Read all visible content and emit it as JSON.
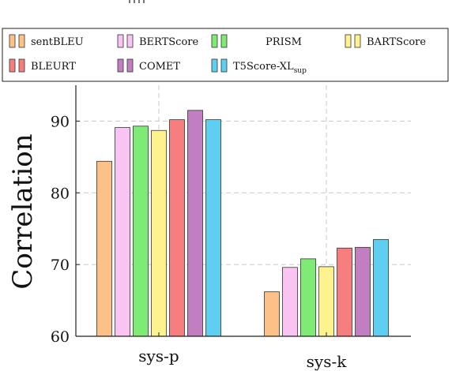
{
  "chart_data": {
    "type": "bar",
    "ylabel": "Correlation",
    "xlabel": "",
    "ylim": [
      60,
      95
    ],
    "yticks": [
      60,
      70,
      80,
      90
    ],
    "grid": true,
    "legend_position": "top",
    "categories": [
      "sys-p",
      "sys-k"
    ],
    "series": [
      {
        "name": "sentBLEU",
        "color": "#FDC086",
        "values": [
          84.4,
          66.2
        ]
      },
      {
        "name": "BERTScore",
        "color": "#F9C3F2",
        "values": [
          89.1,
          69.6
        ]
      },
      {
        "name": "PRISM",
        "color": "#7EEB74",
        "values": [
          89.3,
          70.8
        ]
      },
      {
        "name": "BARTScore",
        "color": "#FDF28E",
        "values": [
          88.7,
          69.7
        ]
      },
      {
        "name": "BLEURT",
        "color": "#F77E7E",
        "values": [
          90.2,
          72.3
        ]
      },
      {
        "name": "COMET",
        "color": "#C17FC1",
        "values": [
          91.5,
          72.4
        ]
      },
      {
        "name": "T5Score-XL",
        "name_subscript": "sup",
        "color": "#5ECFF0",
        "values": [
          90.2,
          73.5
        ]
      }
    ]
  }
}
